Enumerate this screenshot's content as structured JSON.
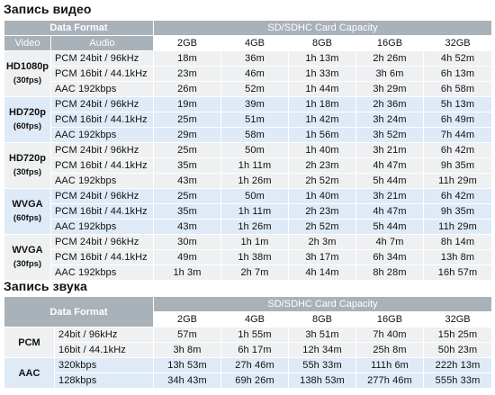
{
  "video_section": {
    "title": "Запись видео",
    "header": {
      "data_format": "Data Format",
      "capacity": "SD/SDHC Card Capacity",
      "video": "Video",
      "audio": "Audio"
    },
    "sizes": [
      "2GB",
      "4GB",
      "8GB",
      "16GB",
      "32GB"
    ],
    "groups": [
      {
        "video": "HD1080p",
        "fps": "(30fps)",
        "tint": "grey",
        "rows": [
          {
            "audio": "PCM 24bit / 96kHz",
            "values": [
              "18m",
              "36m",
              "1h 13m",
              "2h 26m",
              "4h 52m"
            ]
          },
          {
            "audio": "PCM 16bit / 44.1kHz",
            "values": [
              "23m",
              "46m",
              "1h 33m",
              "3h 6m",
              "6h 13m"
            ]
          },
          {
            "audio": "AAC 192kbps",
            "values": [
              "26m",
              "52m",
              "1h 44m",
              "3h 29m",
              "6h 58m"
            ]
          }
        ]
      },
      {
        "video": "HD720p",
        "fps": "(60fps)",
        "tint": "blue",
        "rows": [
          {
            "audio": "PCM 24bit / 96kHz",
            "values": [
              "19m",
              "39m",
              "1h 18m",
              "2h 36m",
              "5h 13m"
            ]
          },
          {
            "audio": "PCM 16bit / 44.1kHz",
            "values": [
              "25m",
              "51m",
              "1h 42m",
              "3h 24m",
              "6h 49m"
            ]
          },
          {
            "audio": "AAC 192kbps",
            "values": [
              "29m",
              "58m",
              "1h 56m",
              "3h 52m",
              "7h 44m"
            ]
          }
        ]
      },
      {
        "video": "HD720p",
        "fps": "(30fps)",
        "tint": "grey",
        "rows": [
          {
            "audio": "PCM 24bit / 96kHz",
            "values": [
              "25m",
              "50m",
              "1h 40m",
              "3h 21m",
              "6h 42m"
            ]
          },
          {
            "audio": "PCM 16bit / 44.1kHz",
            "values": [
              "35m",
              "1h 11m",
              "2h 23m",
              "4h 47m",
              "9h 35m"
            ]
          },
          {
            "audio": "AAC 192kbps",
            "values": [
              "43m",
              "1h 26m",
              "2h 52m",
              "5h 44m",
              "11h 29m"
            ]
          }
        ]
      },
      {
        "video": "WVGA",
        "fps": "(60fps)",
        "tint": "blue",
        "rows": [
          {
            "audio": "PCM 24bit / 96kHz",
            "values": [
              "25m",
              "50m",
              "1h 40m",
              "3h 21m",
              "6h 42m"
            ]
          },
          {
            "audio": "PCM 16bit / 44.1kHz",
            "values": [
              "35m",
              "1h 11m",
              "2h 23m",
              "4h 47m",
              "9h 35m"
            ]
          },
          {
            "audio": "AAC 192kbps",
            "values": [
              "43m",
              "1h 26m",
              "2h 52m",
              "5h 44m",
              "11h 29m"
            ]
          }
        ]
      },
      {
        "video": "WVGA",
        "fps": "(30fps)",
        "tint": "grey",
        "rows": [
          {
            "audio": "PCM 24bit / 96kHz",
            "values": [
              "30m",
              "1h 1m",
              "2h 3m",
              "4h 7m",
              "8h 14m"
            ]
          },
          {
            "audio": "PCM 16bit / 44.1kHz",
            "values": [
              "49m",
              "1h 38m",
              "3h 17m",
              "6h 34m",
              "13h 8m"
            ]
          },
          {
            "audio": "AAC 192kbps",
            "values": [
              "1h 3m",
              "2h 7m",
              "4h 14m",
              "8h 28m",
              "16h 57m"
            ]
          }
        ]
      }
    ]
  },
  "audio_section": {
    "title": "Запись звука",
    "header": {
      "data_format": "Data Format",
      "capacity": "SD/SDHC Card Capacity"
    },
    "sizes": [
      "2GB",
      "4GB",
      "8GB",
      "16GB",
      "32GB"
    ],
    "groups": [
      {
        "format": "PCM",
        "tint": "grey",
        "rows": [
          {
            "rate": "24bit / 96kHz",
            "values": [
              "57m",
              "1h 55m",
              "3h 51m",
              "7h 40m",
              "15h 25m"
            ]
          },
          {
            "rate": "16bit / 44.1kHz",
            "values": [
              "3h 8m",
              "6h 17m",
              "12h 34m",
              "25h 8m",
              "50h 23m"
            ]
          }
        ]
      },
      {
        "format": "AAC",
        "tint": "blue",
        "rows": [
          {
            "rate": "320kbps",
            "values": [
              "13h 53m",
              "27h 46m",
              "55h 33m",
              "111h 6m",
              "222h 13m"
            ]
          },
          {
            "rate": "128kbps",
            "values": [
              "34h 43m",
              "69h 26m",
              "138h 53m",
              "277h 46m",
              "555h 33m"
            ]
          }
        ]
      }
    ]
  }
}
